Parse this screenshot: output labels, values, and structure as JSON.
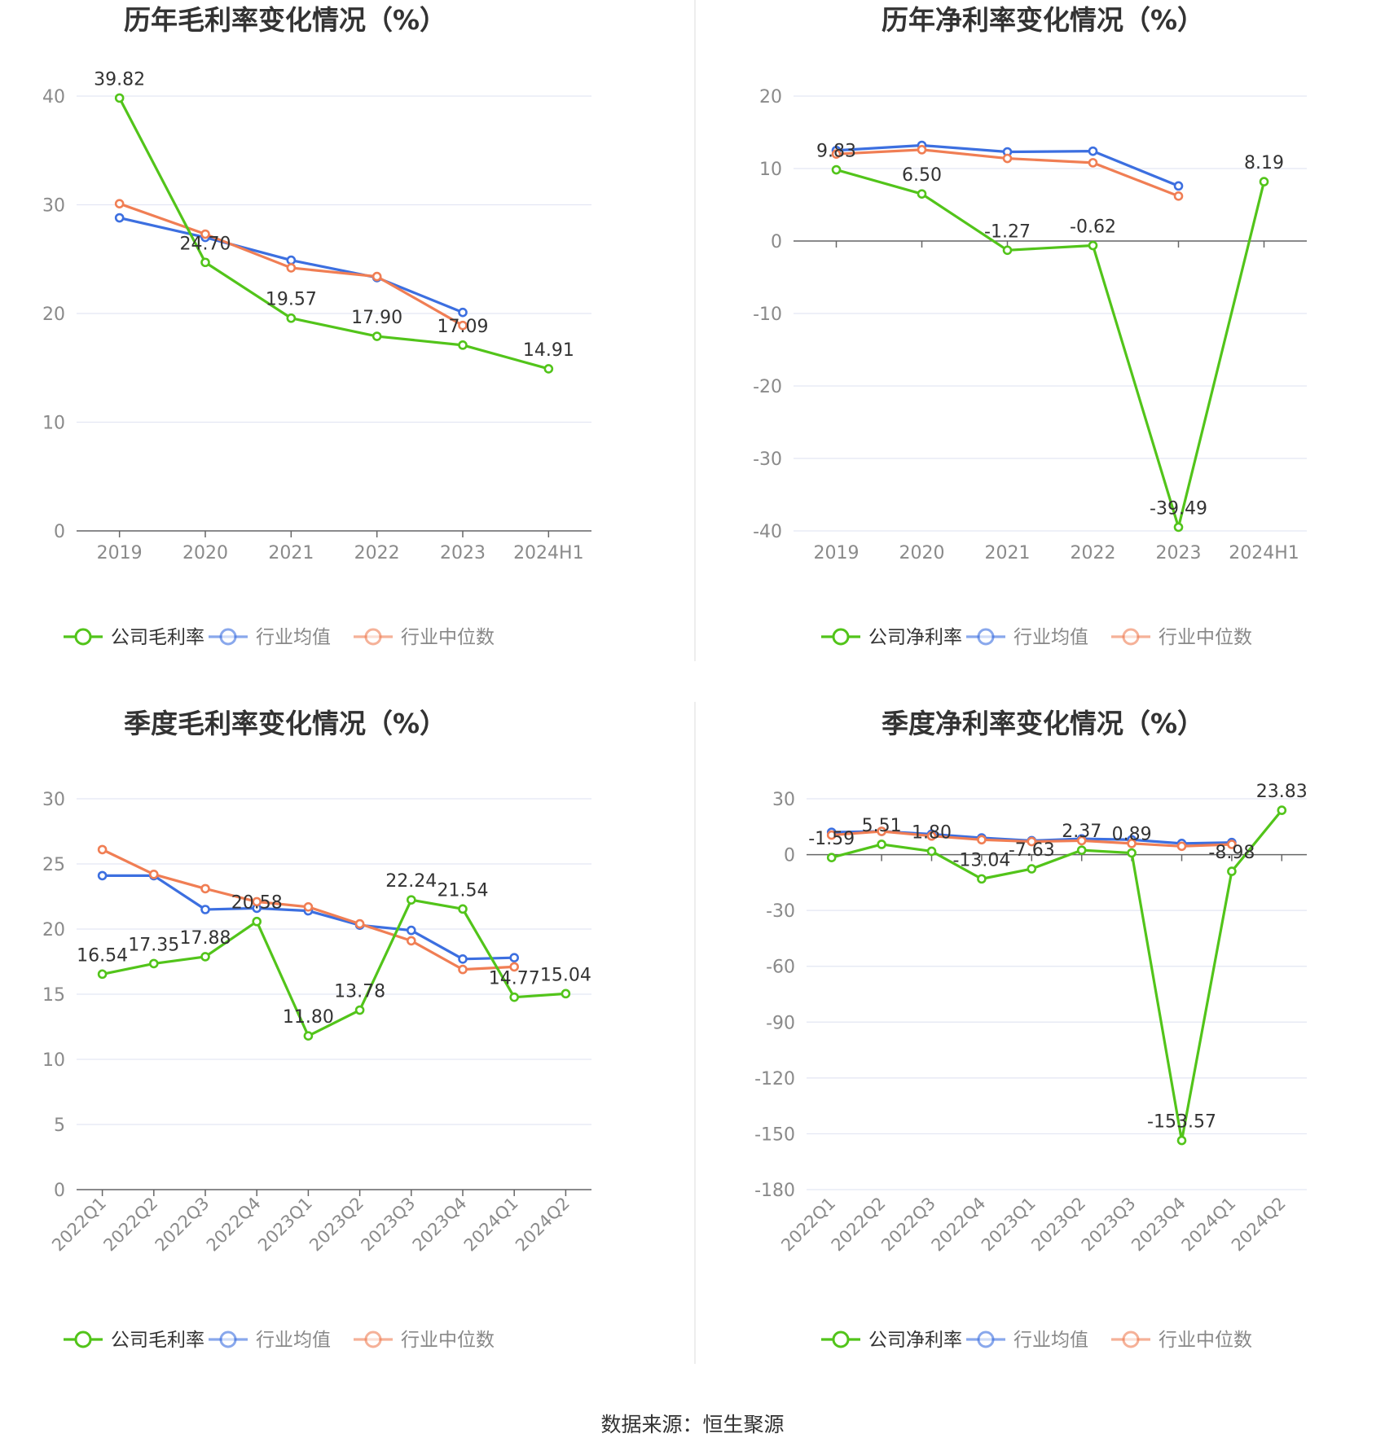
{
  "colors": {
    "company": "#52c41a",
    "avg": "#3c6fe0",
    "median": "#f07e54",
    "grid": "#e3e6f3",
    "axis": "#666666",
    "tick_text": "#8a8a8a",
    "label_text": "#333333",
    "divider": "#e8e8e8"
  },
  "source_text": "数据来源：恒生聚源",
  "chart_data": [
    {
      "type": "line",
      "title": "历年毛利率变化情况（%）",
      "categories": [
        "2019",
        "2020",
        "2021",
        "2022",
        "2023",
        "2024H1"
      ],
      "ylim": [
        0,
        40
      ],
      "yticks": [
        0,
        10,
        20,
        30,
        40
      ],
      "grid": true,
      "legend_position": "bottom",
      "series": [
        {
          "name": "公司毛利率",
          "role": "company",
          "values": [
            39.82,
            24.7,
            19.57,
            17.9,
            17.09,
            14.91
          ],
          "labels": [
            "39.82",
            "24.70",
            "19.57",
            "17.90",
            "17.09",
            "14.91"
          ]
        },
        {
          "name": "行业均值",
          "role": "avg",
          "values": [
            28.8,
            27.0,
            24.9,
            23.3,
            20.1,
            null
          ]
        },
        {
          "name": "行业中位数",
          "role": "median",
          "values": [
            30.1,
            27.3,
            24.2,
            23.4,
            18.9,
            null
          ]
        }
      ]
    },
    {
      "type": "line",
      "title": "历年净利率变化情况（%）",
      "categories": [
        "2019",
        "2020",
        "2021",
        "2022",
        "2023",
        "2024H1"
      ],
      "ylim": [
        -40,
        20
      ],
      "yticks": [
        -40,
        -30,
        -20,
        -10,
        0,
        10,
        20
      ],
      "grid": true,
      "legend_position": "bottom",
      "series": [
        {
          "name": "公司净利率",
          "role": "company",
          "values": [
            9.83,
            6.5,
            -1.27,
            -0.62,
            -39.49,
            8.19
          ],
          "labels": [
            "9.83",
            "6.50",
            "-1.27",
            "-0.62",
            "-39.49",
            "8.19"
          ]
        },
        {
          "name": "行业均值",
          "role": "avg",
          "values": [
            12.5,
            13.2,
            12.3,
            12.4,
            7.6,
            null
          ]
        },
        {
          "name": "行业中位数",
          "role": "median",
          "values": [
            12.0,
            12.6,
            11.4,
            10.8,
            6.2,
            null
          ]
        }
      ]
    },
    {
      "type": "line",
      "title": "季度毛利率变化情况（%）",
      "categories": [
        "2022Q1",
        "2022Q2",
        "2022Q3",
        "2022Q4",
        "2023Q1",
        "2023Q2",
        "2023Q3",
        "2023Q4",
        "2024Q1",
        "2024Q2"
      ],
      "ylim": [
        0,
        30
      ],
      "yticks": [
        0,
        5,
        10,
        15,
        20,
        25,
        30
      ],
      "grid": true,
      "legend_position": "bottom",
      "series": [
        {
          "name": "公司毛利率",
          "role": "company",
          "values": [
            16.54,
            17.35,
            17.88,
            20.58,
            11.8,
            13.78,
            22.24,
            21.54,
            14.77,
            15.04
          ],
          "labels": [
            "16.54",
            "17.35",
            "17.88",
            "20.58",
            "11.80",
            "13.78",
            "22.24",
            "21.54",
            "14.77",
            "15.04"
          ]
        },
        {
          "name": "行业均值",
          "role": "avg",
          "values": [
            24.1,
            24.1,
            21.5,
            21.6,
            21.4,
            20.3,
            19.9,
            17.7,
            17.8,
            null
          ]
        },
        {
          "name": "行业中位数",
          "role": "median",
          "values": [
            26.1,
            24.2,
            23.1,
            22.1,
            21.7,
            20.4,
            19.1,
            16.9,
            17.1,
            null
          ]
        }
      ]
    },
    {
      "type": "line",
      "title": "季度净利率变化情况（%）",
      "categories": [
        "2022Q1",
        "2022Q2",
        "2022Q3",
        "2022Q4",
        "2023Q1",
        "2023Q2",
        "2023Q3",
        "2023Q4",
        "2024Q1",
        "2024Q2"
      ],
      "ylim": [
        -180,
        30
      ],
      "yticks": [
        -180,
        -150,
        -120,
        -90,
        -60,
        -30,
        0,
        30
      ],
      "grid": true,
      "legend_position": "bottom",
      "series": [
        {
          "name": "公司净利率",
          "role": "company",
          "values": [
            -1.59,
            5.51,
            1.8,
            -13.04,
            -7.63,
            2.37,
            0.89,
            -153.57,
            -8.98,
            23.83
          ],
          "labels": [
            "-1.59",
            "5.51",
            "1.80",
            "-13.04",
            "-7.63",
            "2.37",
            "0.89",
            "-153.57",
            "-8.98",
            "23.83"
          ]
        },
        {
          "name": "行业均值",
          "role": "avg",
          "values": [
            12.0,
            12.5,
            11.0,
            9.0,
            7.5,
            8.5,
            8.0,
            6.0,
            6.5,
            null
          ]
        },
        {
          "name": "行业中位数",
          "role": "median",
          "values": [
            10.5,
            12.5,
            10.0,
            8.0,
            7.0,
            7.5,
            6.0,
            4.5,
            5.5,
            null
          ]
        }
      ]
    }
  ]
}
